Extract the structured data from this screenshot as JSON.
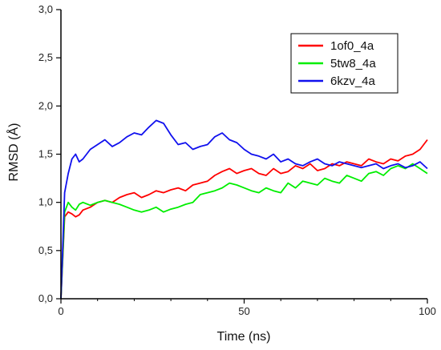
{
  "chart_data": {
    "type": "line",
    "title": "",
    "xlabel": "Time (ns)",
    "ylabel": "RMSD (Å)",
    "xlim": [
      0,
      100
    ],
    "ylim": [
      0,
      3.0
    ],
    "x_ticks": [
      0,
      50,
      100
    ],
    "x_tick_labels": [
      "0",
      "50",
      "100"
    ],
    "y_ticks": [
      0,
      0.5,
      1.0,
      1.5,
      2.0,
      2.5,
      3.0
    ],
    "y_tick_labels": [
      "0,0",
      "0,5",
      "1,0",
      "1,5",
      "2,0",
      "2,5",
      "3,0"
    ],
    "grid": false,
    "legend_position": "top-right",
    "series": [
      {
        "name": "1of0_4a",
        "color": "#ff0000",
        "x": [
          0,
          1,
          2,
          3,
          4,
          5,
          6,
          8,
          10,
          12,
          14,
          16,
          18,
          20,
          22,
          24,
          26,
          28,
          30,
          32,
          34,
          36,
          38,
          40,
          42,
          44,
          46,
          48,
          50,
          52,
          54,
          56,
          58,
          60,
          62,
          64,
          66,
          68,
          70,
          72,
          74,
          76,
          78,
          80,
          82,
          84,
          86,
          88,
          90,
          92,
          94,
          96,
          98,
          100
        ],
        "y": [
          0.0,
          0.85,
          0.9,
          0.88,
          0.85,
          0.87,
          0.92,
          0.95,
          1.0,
          1.02,
          1.0,
          1.05,
          1.08,
          1.1,
          1.05,
          1.08,
          1.12,
          1.1,
          1.13,
          1.15,
          1.12,
          1.18,
          1.2,
          1.22,
          1.28,
          1.32,
          1.35,
          1.3,
          1.33,
          1.35,
          1.3,
          1.28,
          1.35,
          1.3,
          1.32,
          1.38,
          1.35,
          1.4,
          1.33,
          1.35,
          1.4,
          1.38,
          1.42,
          1.4,
          1.38,
          1.45,
          1.42,
          1.4,
          1.45,
          1.43,
          1.48,
          1.5,
          1.55,
          1.65
        ]
      },
      {
        "name": "5tw8_4a",
        "color": "#00ee00",
        "x": [
          0,
          1,
          2,
          3,
          4,
          5,
          6,
          8,
          10,
          12,
          14,
          16,
          18,
          20,
          22,
          24,
          26,
          28,
          30,
          32,
          34,
          36,
          38,
          40,
          42,
          44,
          46,
          48,
          50,
          52,
          54,
          56,
          58,
          60,
          62,
          64,
          66,
          68,
          70,
          72,
          74,
          76,
          78,
          80,
          82,
          84,
          86,
          88,
          90,
          92,
          94,
          96,
          98,
          100
        ],
        "y": [
          0.0,
          0.9,
          1.0,
          0.95,
          0.92,
          0.98,
          1.0,
          0.97,
          1.0,
          1.02,
          1.0,
          0.98,
          0.95,
          0.92,
          0.9,
          0.92,
          0.95,
          0.9,
          0.93,
          0.95,
          0.98,
          1.0,
          1.08,
          1.1,
          1.12,
          1.15,
          1.2,
          1.18,
          1.15,
          1.12,
          1.1,
          1.15,
          1.12,
          1.1,
          1.2,
          1.15,
          1.22,
          1.2,
          1.18,
          1.25,
          1.22,
          1.2,
          1.28,
          1.25,
          1.22,
          1.3,
          1.32,
          1.28,
          1.35,
          1.38,
          1.35,
          1.4,
          1.35,
          1.3
        ]
      },
      {
        "name": "6kzv_4a",
        "color": "#1010ee",
        "x": [
          0,
          1,
          2,
          3,
          4,
          5,
          6,
          8,
          10,
          12,
          14,
          16,
          18,
          20,
          22,
          24,
          26,
          28,
          30,
          32,
          34,
          36,
          38,
          40,
          42,
          44,
          46,
          48,
          50,
          52,
          54,
          56,
          58,
          60,
          62,
          64,
          66,
          68,
          70,
          72,
          74,
          76,
          78,
          80,
          82,
          84,
          86,
          88,
          90,
          92,
          94,
          96,
          98,
          100
        ],
        "y": [
          0.0,
          1.1,
          1.3,
          1.45,
          1.5,
          1.42,
          1.45,
          1.55,
          1.6,
          1.65,
          1.58,
          1.62,
          1.68,
          1.72,
          1.7,
          1.78,
          1.85,
          1.82,
          1.7,
          1.6,
          1.62,
          1.55,
          1.58,
          1.6,
          1.68,
          1.72,
          1.65,
          1.62,
          1.55,
          1.5,
          1.48,
          1.45,
          1.5,
          1.42,
          1.45,
          1.4,
          1.38,
          1.42,
          1.45,
          1.4,
          1.38,
          1.42,
          1.4,
          1.38,
          1.36,
          1.38,
          1.4,
          1.35,
          1.38,
          1.4,
          1.36,
          1.38,
          1.42,
          1.35
        ]
      }
    ]
  }
}
